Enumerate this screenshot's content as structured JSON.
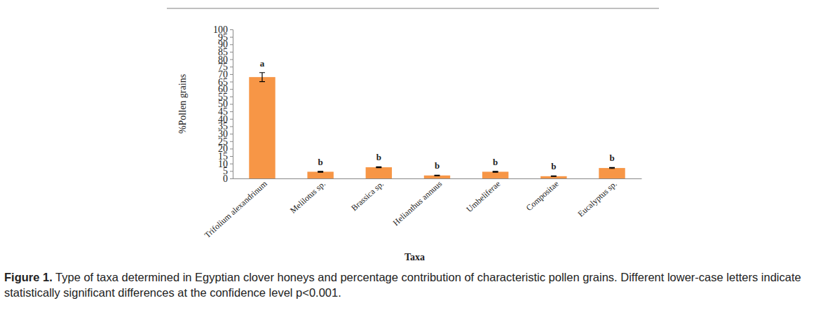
{
  "chart_data": {
    "type": "bar",
    "categories": [
      "Trifolium alexandrinum",
      "Melilotus sp.",
      "Brassica sp.",
      "Helianthus annuus",
      "Umbeliferae",
      "Compositae",
      "Eucalyptus sp."
    ],
    "values": [
      68,
      4.5,
      7.5,
      2,
      4.5,
      1.5,
      7
    ],
    "errors": [
      3,
      0.3,
      0.3,
      0.2,
      0.3,
      0.2,
      0.3
    ],
    "annotations": [
      "a",
      "b",
      "b",
      "b",
      "b",
      "b",
      "b"
    ],
    "color": "#f79646",
    "x_label": "Taxa",
    "y_label": "%Pollen grains",
    "ylim": [
      0,
      100
    ],
    "yticks": [
      0,
      5,
      10,
      15,
      20,
      25,
      30,
      35,
      40,
      45,
      50,
      55,
      60,
      65,
      70,
      75,
      80,
      85,
      90,
      95,
      100
    ],
    "grid": false,
    "caption_label": "Figure 1.",
    "caption": "Type of taxa determined in Egyptian clover honeys and percentage contribution of characteristic pollen grains. Different lower-case letters indicate statistically significant differences at the confidence level p<0.001."
  }
}
